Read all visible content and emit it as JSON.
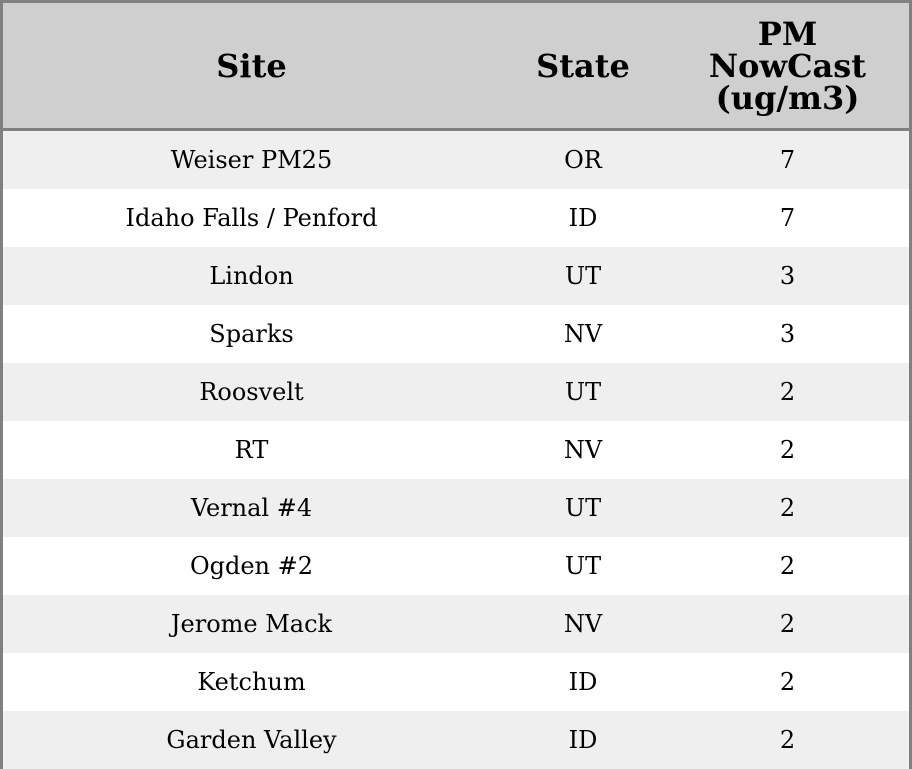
{
  "table": {
    "headers": [
      "Site",
      "State",
      "PM NowCast (ug/m3)"
    ],
    "header_lines": {
      "pm": [
        "PM",
        "NowCast",
        "(ug/m3)"
      ]
    },
    "rows": [
      {
        "site": "Weiser PM25",
        "state": "OR",
        "pm": "7"
      },
      {
        "site": "Idaho Falls / Penford",
        "state": "ID",
        "pm": "7"
      },
      {
        "site": "Lindon",
        "state": "UT",
        "pm": "3"
      },
      {
        "site": "Sparks",
        "state": "NV",
        "pm": "3"
      },
      {
        "site": "Roosvelt",
        "state": "UT",
        "pm": "2"
      },
      {
        "site": "RT",
        "state": "NV",
        "pm": "2"
      },
      {
        "site": "Vernal #4",
        "state": "UT",
        "pm": "2"
      },
      {
        "site": "Ogden #2",
        "state": "UT",
        "pm": "2"
      },
      {
        "site": "Jerome Mack",
        "state": "NV",
        "pm": "2"
      },
      {
        "site": "Ketchum",
        "state": "ID",
        "pm": "2"
      },
      {
        "site": "Garden Valley",
        "state": "ID",
        "pm": "2"
      }
    ]
  },
  "colors": {
    "header_bg": "#cfcfcf",
    "stripe_bg": "#efefef",
    "border": "#808080"
  }
}
